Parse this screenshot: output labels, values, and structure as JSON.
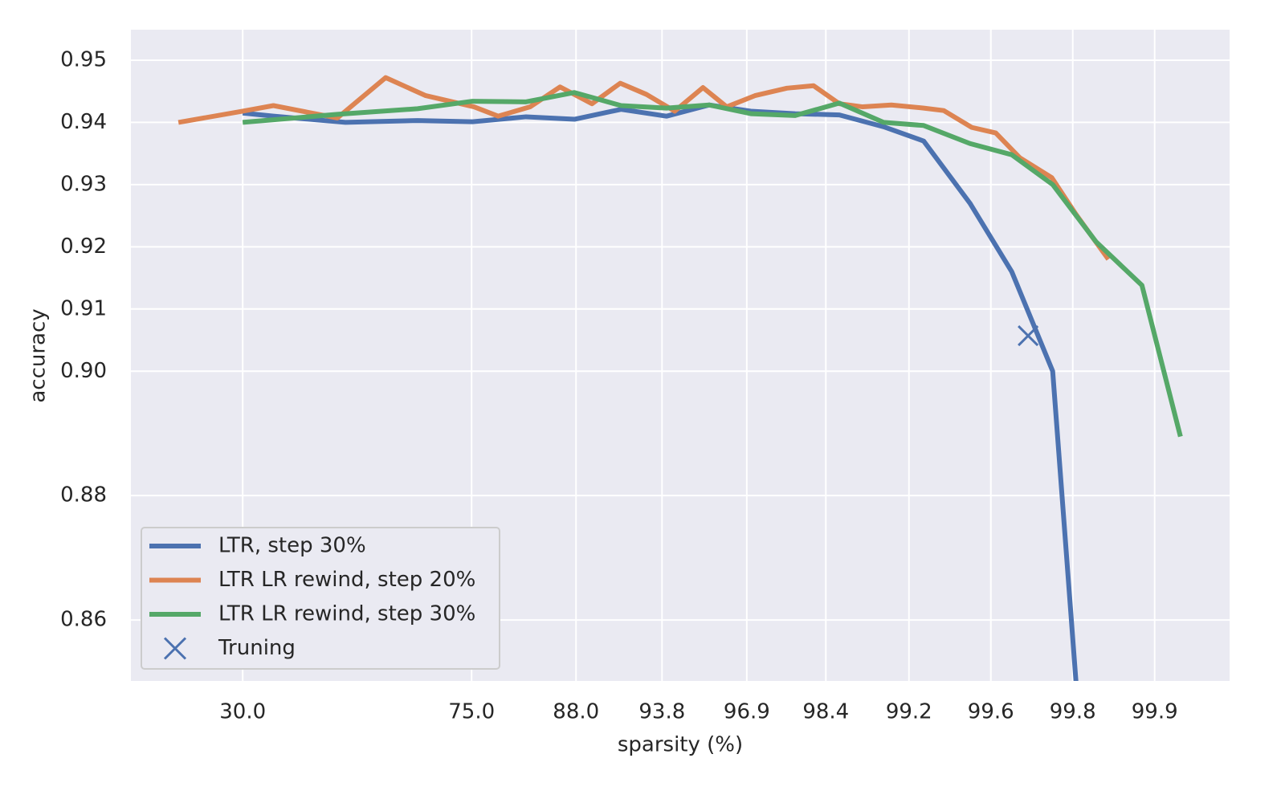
{
  "chart_data": {
    "type": "line",
    "xlabel": "sparsity (%)",
    "ylabel": "accuracy",
    "xlim": [
      -2.73,
      24.1
    ],
    "xticks": [
      {
        "value": 0,
        "label": "30.0"
      },
      {
        "value": 5.59,
        "label": "75.0"
      },
      {
        "value": 8.14,
        "label": "88.0"
      },
      {
        "value": 10.24,
        "label": "93.8"
      },
      {
        "value": 12.31,
        "label": "96.9"
      },
      {
        "value": 14.24,
        "label": "98.4"
      },
      {
        "value": 16.27,
        "label": "99.2"
      },
      {
        "value": 18.27,
        "label": "99.6"
      },
      {
        "value": 20.27,
        "label": "99.8"
      },
      {
        "value": 22.27,
        "label": "99.9"
      }
    ],
    "ylim": [
      0.8502,
      0.9549
    ],
    "yticks": [
      0.86,
      0.88,
      {
        "value": 0.9,
        "label": "0.90"
      },
      0.91,
      0.92,
      0.93,
      0.94,
      0.95
    ],
    "grid": true,
    "legend": "lower left",
    "series": [
      {
        "name": "LTR, step 30%",
        "color": "#4c72b0",
        "x": [
          0,
          0.75,
          2.51,
          4.27,
          5.61,
          6.92,
          8.1,
          9.24,
          10.35,
          11.39,
          12.41,
          13.49,
          14.57,
          15.65,
          16.63,
          17.76,
          18.78,
          19.78,
          20.35
        ],
        "values": [
          0.9415,
          0.941,
          0.94,
          0.9403,
          0.9401,
          0.9409,
          0.9405,
          0.9421,
          0.941,
          0.9428,
          0.9418,
          0.9414,
          0.9412,
          0.9393,
          0.937,
          0.927,
          0.916,
          0.9,
          0.85
        ]
      },
      {
        "name": "LTR LR rewind, step 20%",
        "color": "#dd8452",
        "x": [
          -1.57,
          0,
          0.75,
          2.31,
          3.49,
          4.47,
          5.65,
          6.24,
          7.02,
          7.75,
          8.53,
          9.22,
          9.86,
          10.55,
          11.24,
          11.82,
          12.51,
          13.29,
          13.94,
          14.57,
          15.14,
          15.84,
          16.63,
          17.12,
          17.8,
          18.39,
          18.98,
          19.76,
          20.35,
          21.14
        ],
        "values": [
          0.94,
          0.9418,
          0.9427,
          0.9407,
          0.9472,
          0.9443,
          0.9425,
          0.941,
          0.9425,
          0.9457,
          0.943,
          0.9463,
          0.9445,
          0.9418,
          0.9456,
          0.9425,
          0.9443,
          0.9455,
          0.9459,
          0.943,
          0.9425,
          0.9428,
          0.9423,
          0.9419,
          0.9392,
          0.9383,
          0.9343,
          0.9311,
          0.9252,
          0.918
        ]
      },
      {
        "name": "LTR LR rewind, step 30%",
        "color": "#55a868",
        "x": [
          0,
          2.31,
          4.27,
          5.61,
          6.92,
          8.1,
          9.24,
          10.35,
          11.39,
          12.41,
          13.49,
          14.57,
          15.65,
          16.63,
          17.76,
          18.78,
          19.78,
          20.84,
          21.96,
          22.9
        ],
        "values": [
          0.94,
          0.9413,
          0.9422,
          0.9434,
          0.9433,
          0.9448,
          0.9427,
          0.9423,
          0.9428,
          0.9414,
          0.9411,
          0.9431,
          0.94,
          0.9395,
          0.9366,
          0.9348,
          0.93,
          0.9208,
          0.9138,
          0.8895
        ]
      },
      {
        "name": "Truning",
        "color": "#4c72b0",
        "marker": "x",
        "x": [
          19.18
        ],
        "values": [
          0.9057
        ]
      }
    ]
  }
}
